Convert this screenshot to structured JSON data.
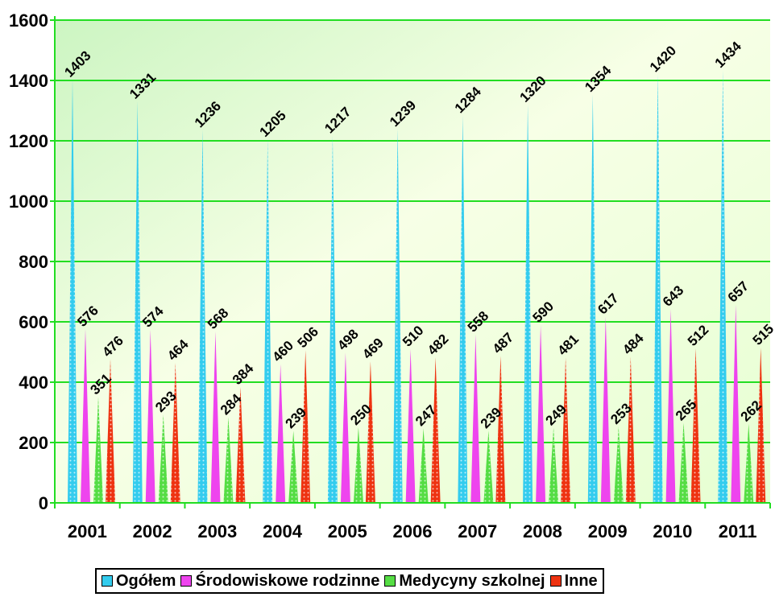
{
  "chart_data": {
    "type": "bar",
    "categories": [
      "2001",
      "2002",
      "2003",
      "2004",
      "2005",
      "2006",
      "2007",
      "2008",
      "2009",
      "2010",
      "2011"
    ],
    "series": [
      {
        "name": "Ogółem",
        "color": "#33ccee",
        "values": [
          1403,
          1331,
          1236,
          1205,
          1217,
          1239,
          1284,
          1320,
          1354,
          1420,
          1434
        ]
      },
      {
        "name": "Środowiskowe rodzinne",
        "color": "#ee44ee",
        "values": [
          576,
          574,
          568,
          460,
          498,
          510,
          558,
          590,
          617,
          643,
          657
        ]
      },
      {
        "name": "Medycyny szkolnej",
        "color": "#55dd44",
        "values": [
          351,
          293,
          284,
          239,
          250,
          247,
          239,
          249,
          253,
          265,
          262
        ]
      },
      {
        "name": "Inne",
        "color": "#ee3311",
        "values": [
          476,
          464,
          384,
          506,
          469,
          482,
          487,
          481,
          484,
          512,
          515
        ]
      }
    ],
    "ylim": [
      0,
      1600
    ],
    "yticks": [
      0,
      200,
      400,
      600,
      800,
      1000,
      1200,
      1400,
      1600
    ],
    "grid": true,
    "legend": "bottom",
    "title": "",
    "xlabel": "",
    "ylabel": ""
  }
}
